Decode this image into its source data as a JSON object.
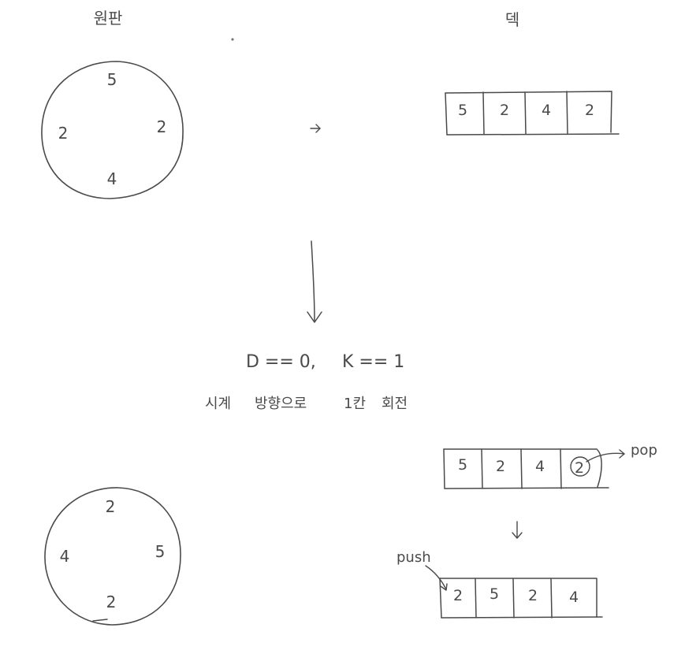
{
  "headers": {
    "disk": "원판",
    "deque": "덱"
  },
  "top": {
    "disk": {
      "top": "5",
      "right": "2",
      "bottom": "4",
      "left": "2"
    },
    "deque": [
      "5",
      "2",
      "4",
      "2"
    ]
  },
  "condition": {
    "d": "D == 0,",
    "k": "K == 1"
  },
  "caption": {
    "clockwise": "시계",
    "direction": "방향으로",
    "one_step": "1칸",
    "rotate": "회전"
  },
  "bottom": {
    "disk": {
      "top": "2",
      "right": "5",
      "bottom": "2",
      "left": "4"
    },
    "deque_before": [
      "5",
      "2",
      "4",
      "2"
    ],
    "deque_after": [
      "2",
      "5",
      "2",
      "4"
    ],
    "pop_label": "pop",
    "push_label": "push"
  }
}
